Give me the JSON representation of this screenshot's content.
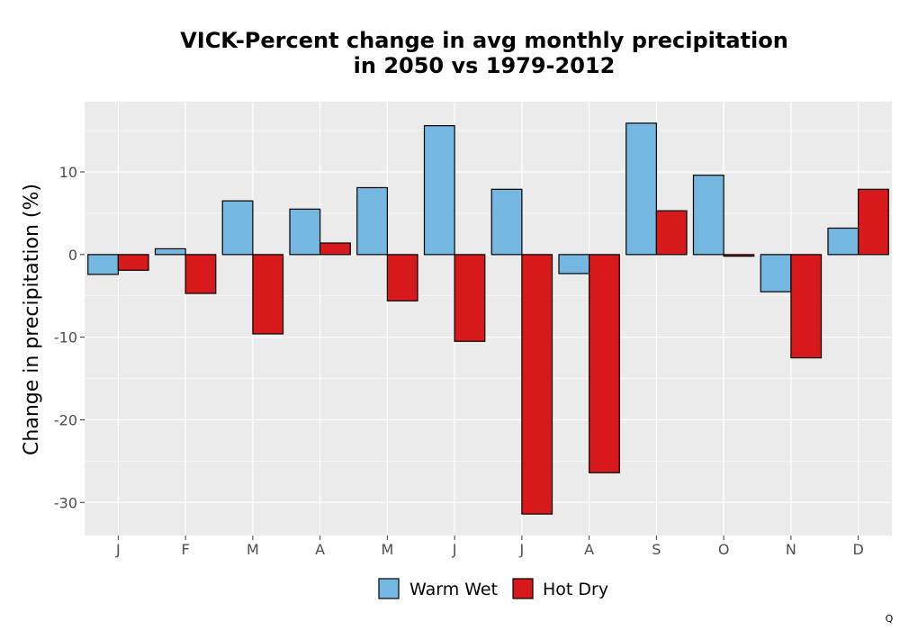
{
  "chart_data": {
    "type": "bar",
    "title_line1": "VICK-Percent change in avg monthly precipitation",
    "title_line2": "in 2050 vs 1979-2012",
    "xlabel": "",
    "ylabel": "Change in precipitation (%)",
    "categories": [
      "J",
      "F",
      "M",
      "A",
      "M",
      "J",
      "J",
      "A",
      "S",
      "O",
      "N",
      "D"
    ],
    "series": [
      {
        "name": "Warm Wet",
        "color": "#74b7e0",
        "values": [
          -2.4,
          0.7,
          6.5,
          5.5,
          8.1,
          15.6,
          7.9,
          -2.3,
          15.9,
          9.6,
          -4.5,
          3.2
        ]
      },
      {
        "name": "Hot Dry",
        "color": "#d7191c",
        "values": [
          -1.9,
          -4.7,
          -9.6,
          1.4,
          -5.6,
          -10.5,
          -31.4,
          -26.4,
          5.3,
          -0.2,
          -12.5,
          7.9
        ]
      }
    ],
    "ylim": [
      -34,
      18.5
    ],
    "yticks": [
      -30,
      -20,
      -10,
      0,
      10
    ],
    "ytick_labels": [
      "-30",
      "-20",
      "-10",
      "0",
      "10"
    ],
    "grid": true,
    "legend_position": "bottom",
    "panel_background": "#ebebeb",
    "corner_mark": "Q"
  }
}
